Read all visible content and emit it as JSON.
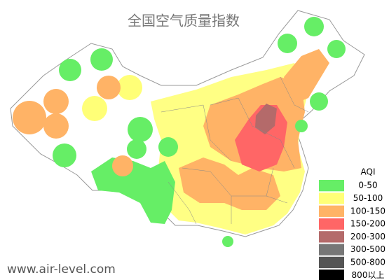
{
  "title": "全国空气质量指数",
  "legend": {
    "title": "AQI",
    "items": [
      {
        "label": "0-50",
        "color": "#66ee66"
      },
      {
        "label": "50-100",
        "color": "#ffff77"
      },
      {
        "label": "100-150",
        "color": "#ffb366"
      },
      {
        "label": "150-200",
        "color": "#ff6666"
      },
      {
        "label": "200-300",
        "color": "#b46a6a"
      },
      {
        "label": "300-500",
        "color": "#777777"
      },
      {
        "label": "500-800",
        "color": "#555555"
      },
      {
        "label": "800以上",
        "color": "#000000"
      }
    ]
  },
  "watermark": "www.air-level.com"
}
